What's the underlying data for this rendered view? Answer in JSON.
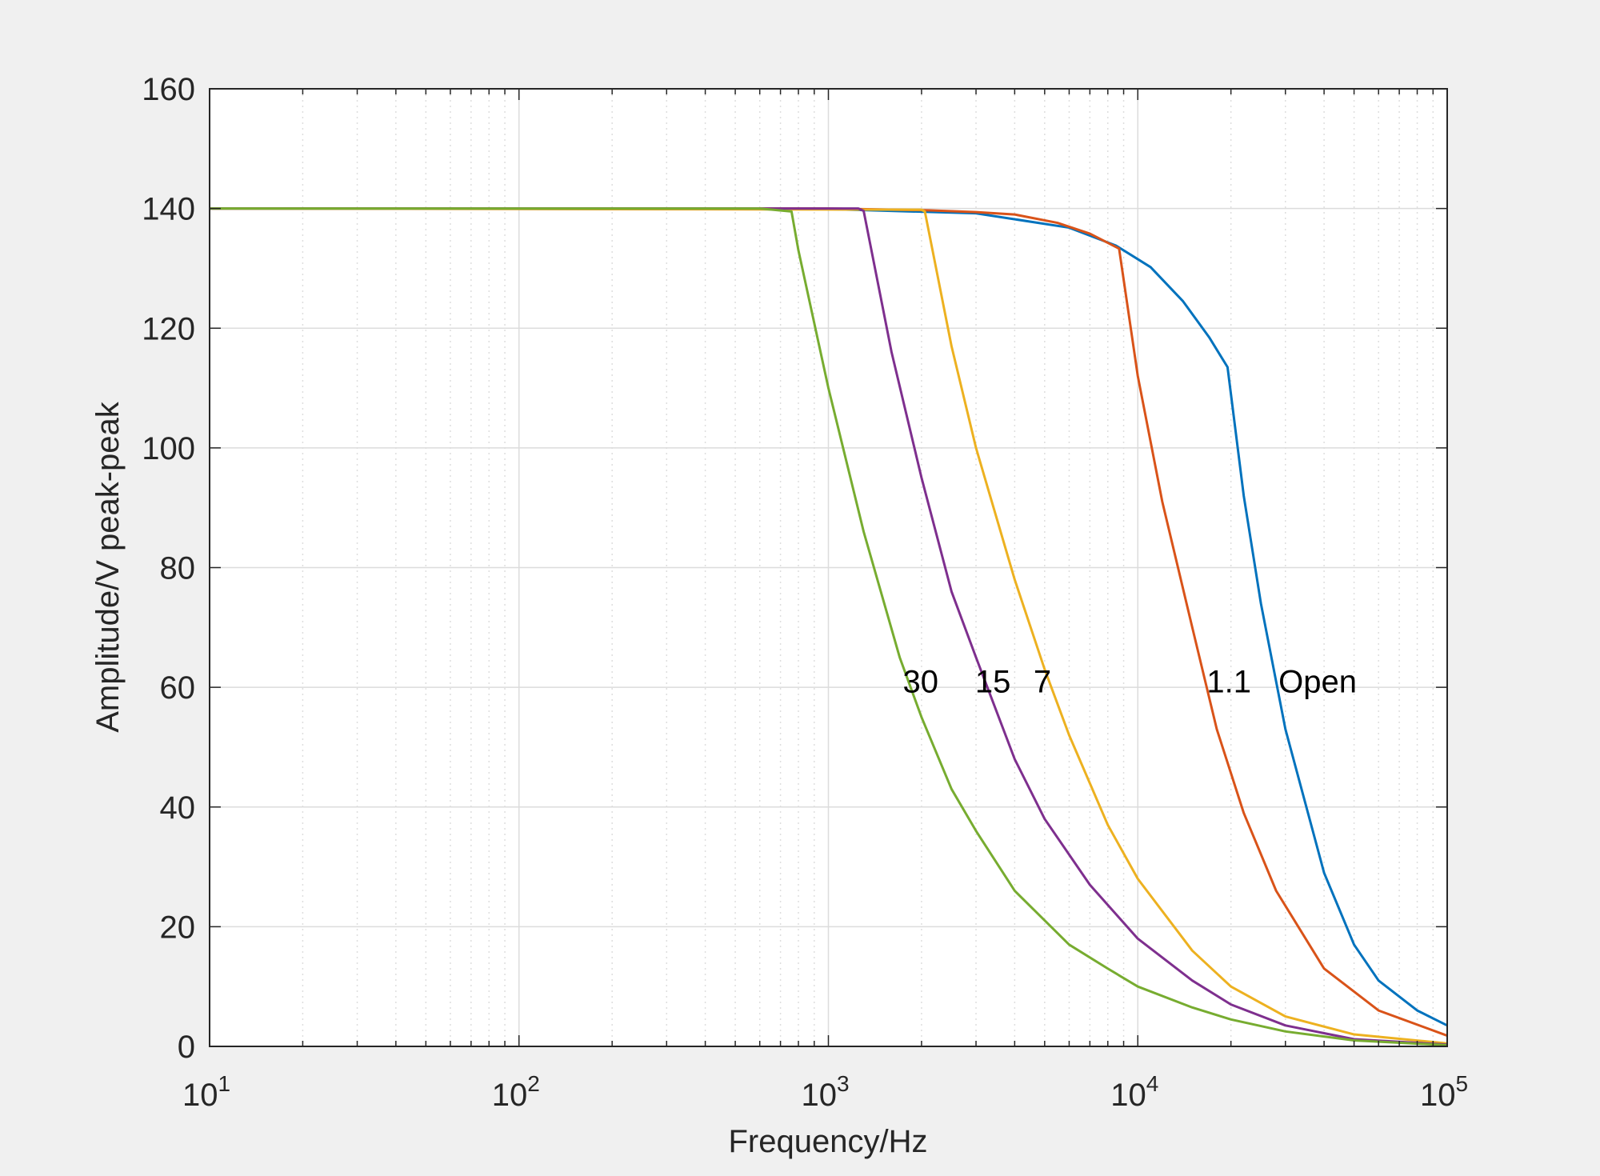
{
  "chart_data": {
    "type": "line",
    "title": "",
    "xlabel": "Frequency/Hz",
    "ylabel": "Amplitude/V peak-peak",
    "xscale": "log",
    "xlim": [
      10,
      100000
    ],
    "ylim": [
      0,
      160
    ],
    "grid": true,
    "x_ticks": [
      {
        "value": 10,
        "base": "10",
        "exp": "1"
      },
      {
        "value": 100,
        "base": "10",
        "exp": "2"
      },
      {
        "value": 1000,
        "base": "10",
        "exp": "3"
      },
      {
        "value": 10000,
        "base": "10",
        "exp": "4"
      },
      {
        "value": 100000,
        "base": "10",
        "exp": "5"
      }
    ],
    "y_ticks": [
      {
        "value": 0,
        "label": "0"
      },
      {
        "value": 20,
        "label": "20"
      },
      {
        "value": 40,
        "label": "40"
      },
      {
        "value": 60,
        "label": "60"
      },
      {
        "value": 80,
        "label": "80"
      },
      {
        "value": 100,
        "label": "100"
      },
      {
        "value": 120,
        "label": "120"
      },
      {
        "value": 140,
        "label": "140"
      },
      {
        "value": 160,
        "label": "160"
      }
    ],
    "series": [
      {
        "color": "#0072bd",
        "x": [
          10,
          1000,
          3000,
          6000,
          8500,
          11000,
          14000,
          17000,
          19500,
          22000,
          25000,
          30000,
          40000,
          50000,
          60000,
          80000,
          100000
        ],
        "y": [
          140,
          139.9,
          139.2,
          136.8,
          133.8,
          130.2,
          124.5,
          118.5,
          113.5,
          92,
          74,
          53,
          29,
          17,
          11,
          6,
          3.5
        ]
      },
      {
        "color": "#d95319",
        "x": [
          10,
          1000,
          2100,
          3000,
          4000,
          5500,
          7000,
          8700,
          10000,
          12000,
          15000,
          18000,
          22000,
          28000,
          40000,
          60000,
          100000
        ],
        "y": [
          140,
          140,
          139.7,
          139.4,
          139,
          137.6,
          135.8,
          133.3,
          112,
          91,
          70,
          53,
          39,
          26,
          13,
          6,
          1.8
        ]
      },
      {
        "color": "#edb120",
        "x": [
          10,
          2000,
          2050,
          2500,
          3000,
          4000,
          5000,
          6000,
          8000,
          10000,
          15000,
          20000,
          30000,
          50000,
          100000
        ],
        "y": [
          140,
          139.8,
          139.5,
          117,
          100,
          78,
          63,
          52,
          37,
          28,
          16,
          10,
          5,
          2,
          0.5
        ]
      },
      {
        "color": "#7e2f8e",
        "x": [
          10,
          1250,
          1300,
          1600,
          2000,
          2500,
          3000,
          4000,
          5000,
          7000,
          10000,
          15000,
          20000,
          30000,
          50000,
          100000
        ],
        "y": [
          140,
          140,
          139.6,
          116,
          95,
          76,
          65,
          48,
          38,
          27,
          18,
          11,
          7,
          3.5,
          1.2,
          0.3
        ]
      },
      {
        "color": "#77ac30",
        "x": [
          10,
          600,
          760,
          800,
          1000,
          1300,
          1700,
          2000,
          2500,
          3000,
          4000,
          6000,
          8000,
          10000,
          15000,
          20000,
          30000,
          50000,
          100000
        ],
        "y": [
          140,
          140,
          139.5,
          133,
          110,
          86,
          65,
          55,
          43,
          36,
          26,
          17,
          13,
          10,
          6.5,
          4.5,
          2.5,
          1,
          0.2
        ]
      }
    ],
    "annotations": [
      {
        "text": "30",
        "x": 1740,
        "y": 61
      },
      {
        "text": "15",
        "x": 2980,
        "y": 61
      },
      {
        "text": "7",
        "x": 4600,
        "y": 61
      },
      {
        "text": "1.1",
        "x": 16700,
        "y": 61
      },
      {
        "text": "Open",
        "x": 28500,
        "y": 61
      }
    ]
  }
}
